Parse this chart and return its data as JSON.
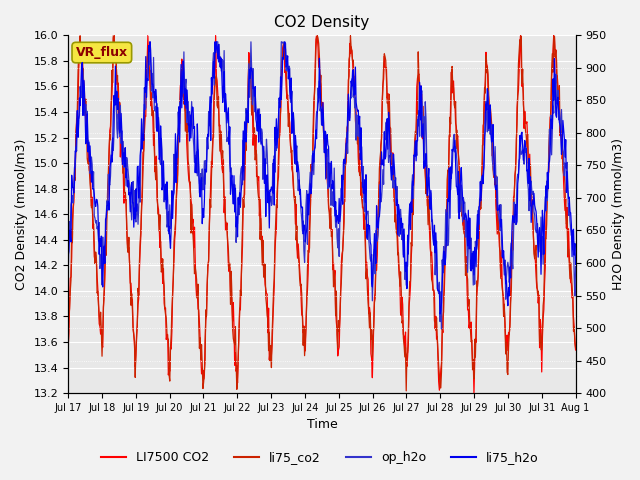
{
  "title": "CO2 Density",
  "xlabel": "Time",
  "ylabel_left": "CO2 Density (mmol/m3)",
  "ylabel_right": "H2O Density (mmol/m3)",
  "ylim_left": [
    13.2,
    16.0
  ],
  "ylim_right": [
    400,
    950
  ],
  "yticks_left": [
    13.2,
    13.4,
    13.6,
    13.8,
    14.0,
    14.2,
    14.4,
    14.6,
    14.8,
    15.0,
    15.2,
    15.4,
    15.6,
    15.8,
    16.0
  ],
  "yticks_right": [
    400,
    450,
    500,
    550,
    600,
    650,
    700,
    750,
    800,
    850,
    900,
    950
  ],
  "xtick_labels": [
    "Jul 17",
    "Jul 18",
    "Jul 19",
    "Jul 20",
    "Jul 21",
    "Jul 22",
    "Jul 23",
    "Jul 24",
    "Jul 25",
    "Jul 26",
    "Jul 27",
    "Jul 28",
    "Jul 29",
    "Jul 30",
    "Jul 31",
    "Aug 1"
  ],
  "legend_label": "VR_flux",
  "color_li7500": "#FF0000",
  "color_li75_co2": "#CC2200",
  "color_op_h2o": "#3333CC",
  "color_li75_h2o": "#0000EE",
  "fig_bg": "#F2F2F2",
  "plot_bg": "#E8E8E8"
}
